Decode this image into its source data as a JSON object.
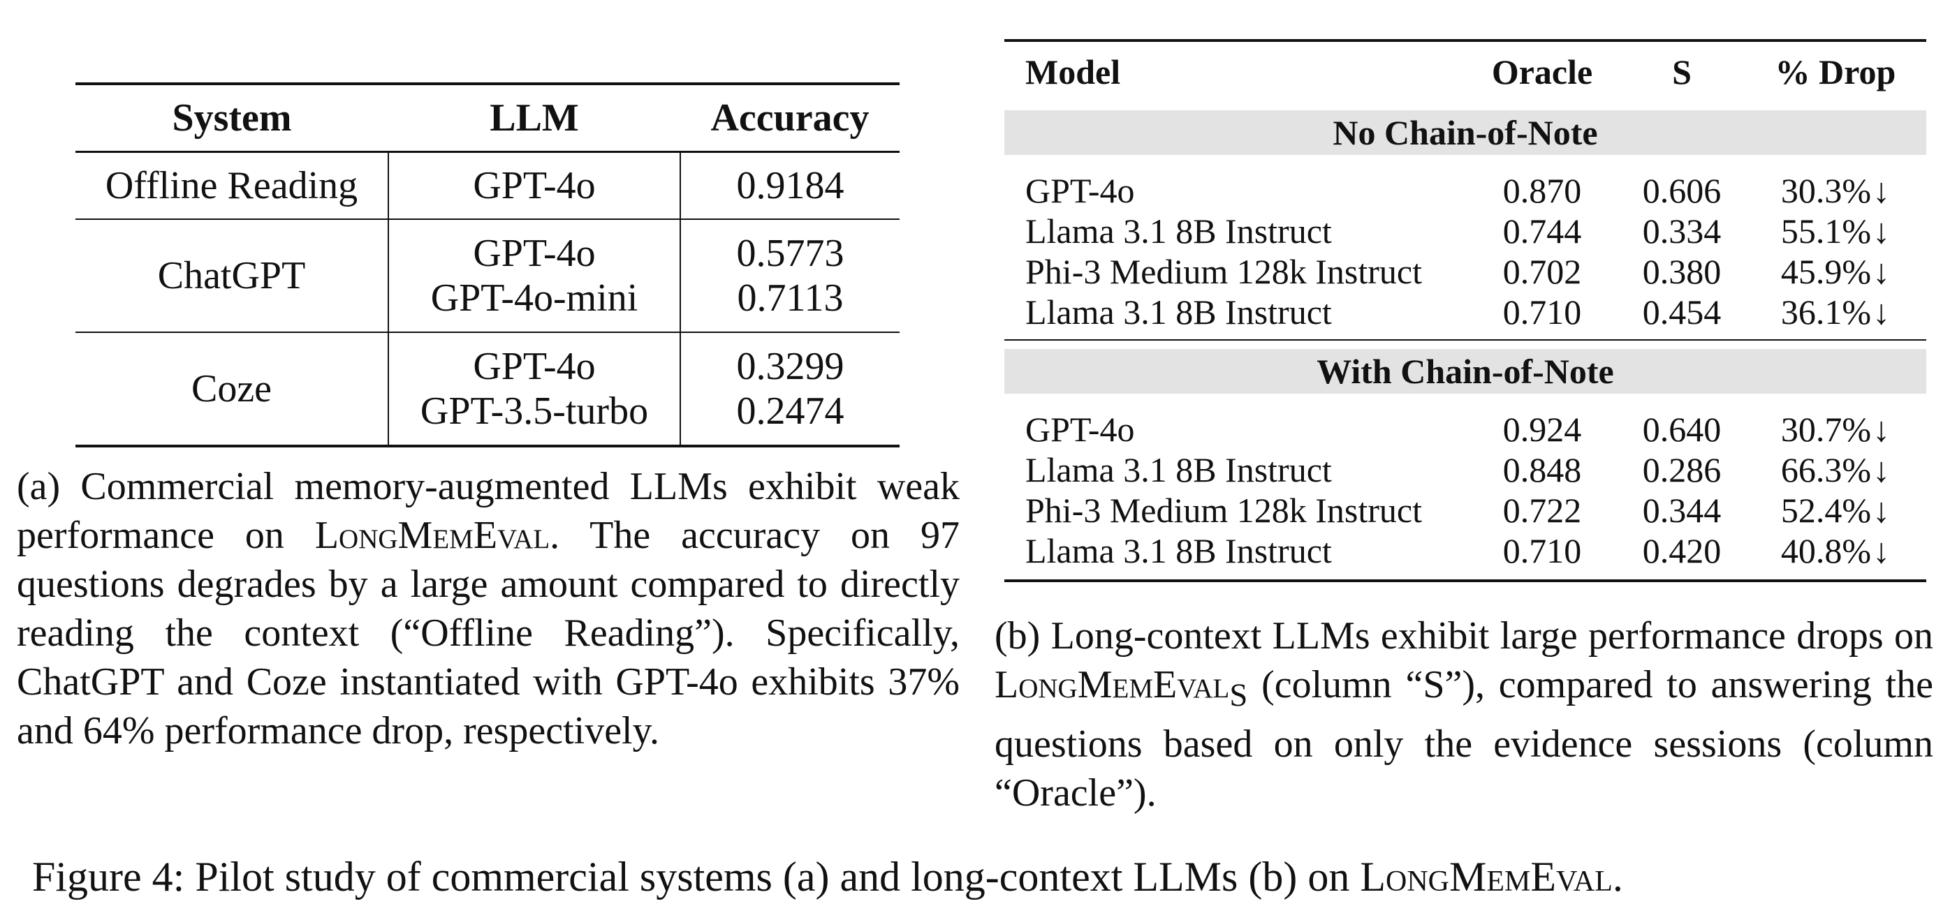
{
  "table_a": {
    "headers": {
      "system": "System",
      "llm": "LLM",
      "accuracy": "Accuracy"
    },
    "groups": [
      {
        "system": "Offline Reading",
        "rows": [
          {
            "llm": "GPT-4o",
            "accuracy": "0.9184"
          }
        ]
      },
      {
        "system": "ChatGPT",
        "rows": [
          {
            "llm": "GPT-4o",
            "accuracy": "0.5773"
          },
          {
            "llm": "GPT-4o-mini",
            "accuracy": "0.7113"
          }
        ]
      },
      {
        "system": "Coze",
        "rows": [
          {
            "llm": "GPT-4o",
            "accuracy": "0.3299"
          },
          {
            "llm": "GPT-3.5-turbo",
            "accuracy": "0.2474"
          }
        ]
      }
    ]
  },
  "caption_a": {
    "prefix": "(a) Commercial memory-augmented LLMs exhibit weak performance on ",
    "name": "LongMemEval",
    "suffix": ". The accuracy on 97 questions degrades by a large amount compared to directly reading the context (“Offline Reading”). Specifically, ChatGPT and Coze instantiated with GPT-4o exhibits 37% and 64% performance drop, respectively."
  },
  "table_b": {
    "headers": {
      "model": "Model",
      "oracle": "Oracle",
      "s": "S",
      "drop": "% Drop"
    },
    "arrow": "↓",
    "sections": [
      {
        "title": "No Chain-of-Note",
        "rows": [
          {
            "model": "GPT-4o",
            "oracle": "0.870",
            "s": "0.606",
            "drop": "30.3%"
          },
          {
            "model": "Llama 3.1 8B Instruct",
            "oracle": "0.744",
            "s": "0.334",
            "drop": "55.1%"
          },
          {
            "model": "Phi-3 Medium 128k Instruct",
            "oracle": "0.702",
            "s": "0.380",
            "drop": "45.9%"
          },
          {
            "model": "Llama 3.1 8B Instruct",
            "oracle": "0.710",
            "s": "0.454",
            "drop": "36.1%"
          }
        ]
      },
      {
        "title": "With Chain-of-Note",
        "rows": [
          {
            "model": "GPT-4o",
            "oracle": "0.924",
            "s": "0.640",
            "drop": "30.7%"
          },
          {
            "model": "Llama 3.1 8B Instruct",
            "oracle": "0.848",
            "s": "0.286",
            "drop": "66.3%"
          },
          {
            "model": "Phi-3 Medium 128k Instruct",
            "oracle": "0.722",
            "s": "0.344",
            "drop": "52.4%"
          },
          {
            "model": "Llama 3.1 8B Instruct",
            "oracle": "0.710",
            "s": "0.420",
            "drop": "40.8%"
          }
        ]
      }
    ]
  },
  "caption_b": {
    "prefix": "(b) Long-context LLMs exhibit large performance drops on ",
    "name": "LongMemEval",
    "subscript": "S",
    "suffix": " (column “S”), compared to answering the questions based on only the evidence sessions (column “Oracle”)."
  },
  "figure_caption": {
    "prefix": "Figure 4: Pilot study of commercial systems (a) and long-context LLMs (b) on ",
    "name": "LongMemEval",
    "suffix": "."
  }
}
